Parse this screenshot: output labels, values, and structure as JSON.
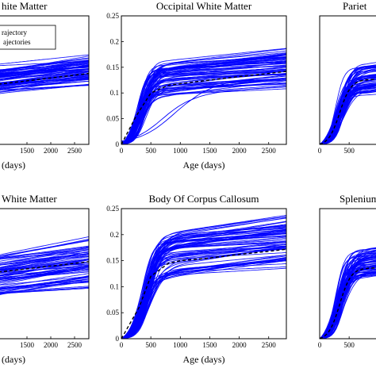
{
  "chart_data": [
    {
      "type": "line",
      "title": "hite Matter",
      "xlabel": "(days)",
      "ylabel": "",
      "xticks": [
        "1500",
        "2000",
        "2500"
      ],
      "yticks": [],
      "xlim": [
        900,
        2800
      ],
      "ylim": [
        0,
        0.25
      ],
      "legend": {
        "position": "top-left",
        "entries": [
          "rajectory",
          "ajectories"
        ]
      },
      "series": [
        {
          "role": "trajectories",
          "color": "#0000ff",
          "x": [
            900,
            2800
          ],
          "y_band_low": [
            0.09,
            0.1
          ],
          "y_band_high": [
            0.155,
            0.17
          ]
        },
        {
          "role": "mean",
          "color": "#000000",
          "style": "dashed",
          "x": [
            900,
            2800
          ],
          "y": [
            0.117,
            0.138
          ]
        }
      ]
    },
    {
      "type": "line",
      "title": "Occipital White Matter",
      "xlabel": "Age (days)",
      "ylabel": "",
      "xticks": [
        "0",
        "500",
        "1000",
        "1500",
        "2000",
        "2500"
      ],
      "yticks": [
        "0",
        "0.05",
        "0.1",
        "0.15",
        "0.2",
        "0.25"
      ],
      "xlim": [
        0,
        2800
      ],
      "ylim": [
        0,
        0.25
      ],
      "grid": false,
      "series": [
        {
          "role": "trajectories",
          "color": "#0000ff",
          "x": [
            0,
            2800
          ],
          "plateau_range": [
            0.085,
            0.18
          ],
          "mean_plateau": 0.14
        },
        {
          "role": "mean",
          "color": "#000000",
          "style": "dashed",
          "x": [
            0,
            250,
            500,
            800,
            1000,
            1500,
            2000,
            2500,
            2800
          ],
          "y": [
            0,
            0.055,
            0.1,
            0.115,
            0.118,
            0.125,
            0.132,
            0.138,
            0.142
          ]
        }
      ]
    },
    {
      "type": "line",
      "title": "Pariet",
      "xlabel": "",
      "ylabel": "",
      "xticks": [
        "0",
        "500"
      ],
      "yticks": [],
      "xlim": [
        0,
        700
      ],
      "ylim": [
        0,
        0.25
      ],
      "series": [
        {
          "role": "trajectories",
          "color": "#0000ff",
          "plateau_range": [
            0.09,
            0.17
          ],
          "mean_plateau": 0.13
        },
        {
          "role": "mean",
          "color": "#000000",
          "style": "dashed"
        }
      ]
    },
    {
      "type": "line",
      "title": "White Matter",
      "xlabel": "(days)",
      "ylabel": "",
      "xticks": [
        "1500",
        "2000",
        "2500"
      ],
      "yticks": [],
      "xlim": [
        900,
        2800
      ],
      "ylim": [
        0,
        0.25
      ],
      "series": [
        {
          "role": "trajectories",
          "color": "#0000ff",
          "x": [
            900,
            2800
          ],
          "y_band_low": [
            0.07,
            0.09
          ],
          "y_band_high": [
            0.165,
            0.18
          ]
        },
        {
          "role": "mean",
          "color": "#000000",
          "style": "dashed",
          "x": [
            900,
            2800
          ],
          "y": [
            0.128,
            0.148
          ]
        }
      ]
    },
    {
      "type": "line",
      "title": "Body Of Corpus Callosum",
      "xlabel": "Age (days)",
      "ylabel": "",
      "xticks": [
        "0",
        "500",
        "1000",
        "1500",
        "2000",
        "2500"
      ],
      "yticks": [
        "0",
        "0.05",
        "0.1",
        "0.15",
        "0.2",
        "0.25"
      ],
      "xlim": [
        0,
        2800
      ],
      "ylim": [
        0,
        0.25
      ],
      "grid": false,
      "series": [
        {
          "role": "trajectories",
          "color": "#0000ff",
          "x": [
            0,
            2800
          ],
          "plateau_range": [
            0.1,
            0.23
          ],
          "mean_plateau": 0.17
        },
        {
          "role": "mean",
          "color": "#000000",
          "style": "dashed",
          "x": [
            0,
            300,
            500,
            800,
            1000,
            1500,
            2000,
            2500,
            2800
          ],
          "y": [
            0,
            0.06,
            0.12,
            0.145,
            0.15,
            0.155,
            0.162,
            0.168,
            0.172
          ]
        }
      ]
    },
    {
      "type": "line",
      "title": "Splenium",
      "xlabel": "",
      "ylabel": "",
      "xticks": [
        "0",
        "500"
      ],
      "yticks": [],
      "xlim": [
        0,
        700
      ],
      "ylim": [
        0,
        0.25
      ],
      "series": [
        {
          "role": "trajectories",
          "color": "#0000ff",
          "plateau_range": [
            0.11,
            0.19
          ],
          "mean_plateau": 0.14
        },
        {
          "role": "mean",
          "color": "#000000",
          "style": "dashed"
        }
      ]
    }
  ]
}
